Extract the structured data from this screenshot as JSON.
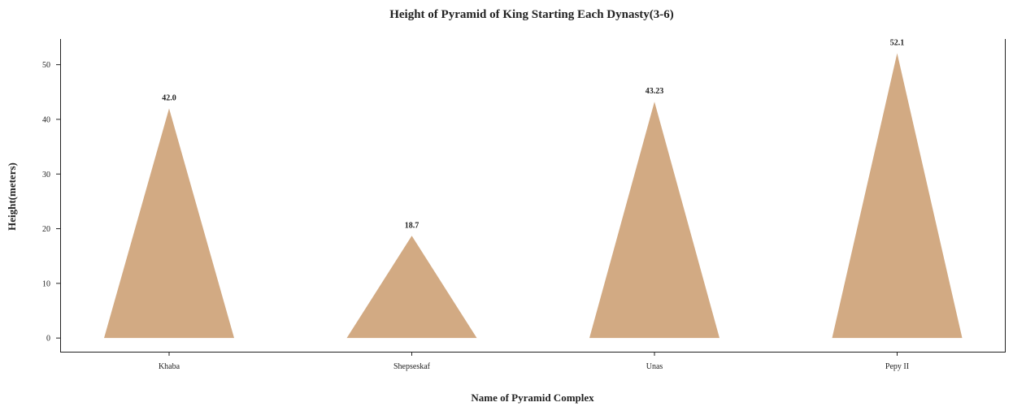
{
  "chart_data": {
    "type": "bar",
    "mark_shape": "triangle",
    "title": "Height of Pyramid of King Starting Each Dynasty(3-6)",
    "xlabel": "Name of Pyramid Complex",
    "ylabel": "Height(meters)",
    "categories": [
      "Khaba",
      "Shepseskaf",
      "Unas",
      "Pepy II"
    ],
    "values": [
      42.0,
      18.7,
      43.23,
      52.1
    ],
    "value_labels": [
      "42.0",
      "18.7",
      "43.23",
      "52.1"
    ],
    "yticks": [
      0,
      10,
      20,
      30,
      40,
      50
    ],
    "ylim": [
      -2.5,
      54.7
    ],
    "grid": false,
    "bar_color": "#d2aa83"
  }
}
